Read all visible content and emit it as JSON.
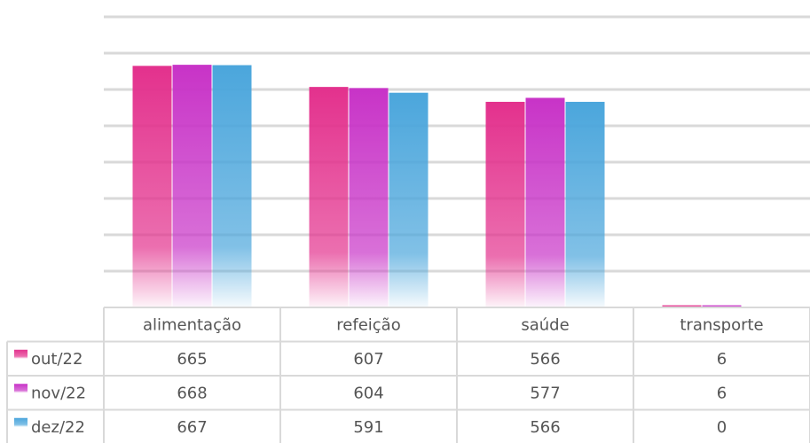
{
  "chart_data": {
    "type": "bar",
    "categories": [
      "alimentação",
      "refeição",
      "saúde",
      "transporte"
    ],
    "series": [
      {
        "name": "out/22",
        "values": [
          665,
          607,
          566,
          6
        ],
        "color": "#e3318d"
      },
      {
        "name": "nov/22",
        "values": [
          668,
          604,
          577,
          6
        ],
        "color": "#c833c7"
      },
      {
        "name": "dez/22",
        "values": [
          667,
          591,
          566,
          0
        ],
        "color": "#4ba6dc"
      }
    ],
    "ylim": [
      0,
      800
    ],
    "grid": true,
    "legend": "data-table-left"
  }
}
